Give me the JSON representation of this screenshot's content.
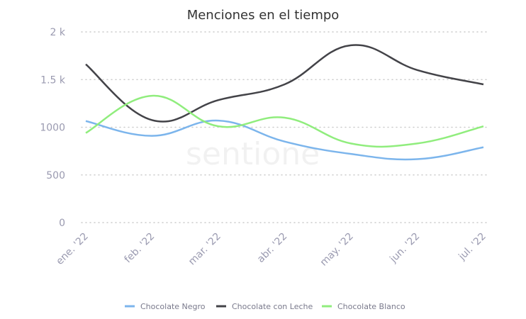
{
  "chart_data": {
    "type": "line",
    "title": "Menciones en el tiempo",
    "xlabel": "",
    "ylabel": "",
    "categories": [
      "ene. '22",
      "feb. '22",
      "mar. '22",
      "abr. '22",
      "may. '22",
      "jun. '22",
      "jul. '22"
    ],
    "ylim": [
      0,
      2000
    ],
    "yticks": [
      0,
      500,
      1000,
      1500,
      2000
    ],
    "ytick_labels": [
      "0",
      "500",
      "1000",
      "1.5 k",
      "2 k"
    ],
    "grid": true,
    "legend_position": "bottom",
    "watermark": "sentione",
    "series": [
      {
        "name": "Chocolate Negro",
        "color": "#7cb5ec",
        "values": [
          1065,
          910,
          1070,
          850,
          720,
          665,
          790
        ]
      },
      {
        "name": "Chocolate con Leche",
        "color": "#434348",
        "values": [
          1660,
          1075,
          1285,
          1450,
          1860,
          1600,
          1450
        ]
      },
      {
        "name": "Chocolate Blanco",
        "color": "#90ed7d",
        "values": [
          940,
          1330,
          1010,
          1100,
          830,
          830,
          1010
        ]
      }
    ]
  }
}
